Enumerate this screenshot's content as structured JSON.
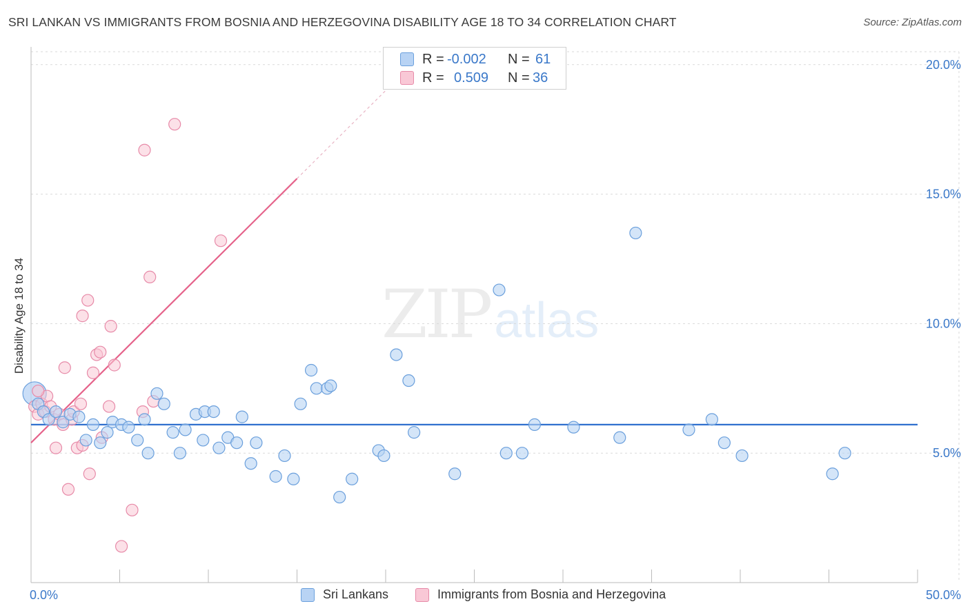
{
  "header": {
    "title": "SRI LANKAN VS IMMIGRANTS FROM BOSNIA AND HERZEGOVINA DISABILITY AGE 18 TO 34 CORRELATION CHART",
    "source": "Source: ZipAtlas.com"
  },
  "watermark": {
    "zip": "ZIP",
    "atlas": "atlas"
  },
  "stats_legend": {
    "r_label": "R =",
    "n_label": "N =",
    "rows": [
      {
        "series": "Sri Lankans",
        "r": "-0.002",
        "n": "61"
      },
      {
        "series": "Immigrants from Bosnia and Herzegovina",
        "r": "0.509",
        "n": "36"
      }
    ]
  },
  "colors": {
    "blue_fill": "#b8d3f4",
    "blue_stroke": "#6a9fdc",
    "blue_line": "#2e6fce",
    "pink_fill": "#f9c8d6",
    "pink_stroke": "#e78aa8",
    "pink_line": "#e5628a",
    "tick_label": "#3a78c9",
    "grid": "#d9d9d9"
  },
  "chart_data": {
    "type": "scatter",
    "title": "SRI LANKAN VS IMMIGRANTS FROM BOSNIA AND HERZEGOVINA DISABILITY AGE 18 TO 34 CORRELATION CHART",
    "xlabel": "",
    "ylabel": "Disability Age 18 to 34",
    "xlim": [
      0,
      50
    ],
    "ylim": [
      0,
      20.5
    ],
    "x_tick_labels": [
      "0.0%",
      "50.0%"
    ],
    "y_ticks": [
      5,
      10,
      15,
      20
    ],
    "y_tick_labels": [
      "5.0%",
      "10.0%",
      "15.0%",
      "20.0%"
    ],
    "legend_position": "bottom-center",
    "series": [
      {
        "name": "Sri Lankans",
        "color": "#6a9fdc",
        "trend": {
          "x0": 0,
          "y0": 6.1,
          "x1": 50,
          "y1": 6.1
        },
        "points": [
          {
            "x": 0.4,
            "y": 6.9
          },
          {
            "x": 0.7,
            "y": 6.6
          },
          {
            "x": 1.0,
            "y": 6.3
          },
          {
            "x": 1.4,
            "y": 6.6
          },
          {
            "x": 1.8,
            "y": 6.2
          },
          {
            "x": 2.2,
            "y": 6.5
          },
          {
            "x": 2.7,
            "y": 6.4
          },
          {
            "x": 3.1,
            "y": 5.5
          },
          {
            "x": 3.5,
            "y": 6.1
          },
          {
            "x": 3.9,
            "y": 5.4
          },
          {
            "x": 4.3,
            "y": 5.8
          },
          {
            "x": 4.6,
            "y": 6.2
          },
          {
            "x": 5.1,
            "y": 6.1
          },
          {
            "x": 5.5,
            "y": 6.0
          },
          {
            "x": 6.0,
            "y": 5.5
          },
          {
            "x": 6.4,
            "y": 6.3
          },
          {
            "x": 6.6,
            "y": 5.0
          },
          {
            "x": 7.1,
            "y": 7.3
          },
          {
            "x": 7.5,
            "y": 6.9
          },
          {
            "x": 8.0,
            "y": 5.8
          },
          {
            "x": 8.4,
            "y": 5.0
          },
          {
            "x": 8.7,
            "y": 5.9
          },
          {
            "x": 9.3,
            "y": 6.5
          },
          {
            "x": 9.7,
            "y": 5.5
          },
          {
            "x": 9.8,
            "y": 6.6
          },
          {
            "x": 10.3,
            "y": 6.6
          },
          {
            "x": 10.6,
            "y": 5.2
          },
          {
            "x": 11.1,
            "y": 5.6
          },
          {
            "x": 11.6,
            "y": 5.4
          },
          {
            "x": 11.9,
            "y": 6.4
          },
          {
            "x": 12.4,
            "y": 4.6
          },
          {
            "x": 12.7,
            "y": 5.4
          },
          {
            "x": 13.8,
            "y": 4.1
          },
          {
            "x": 14.3,
            "y": 4.9
          },
          {
            "x": 14.8,
            "y": 4.0
          },
          {
            "x": 15.2,
            "y": 6.9
          },
          {
            "x": 15.8,
            "y": 8.2
          },
          {
            "x": 16.1,
            "y": 7.5
          },
          {
            "x": 16.7,
            "y": 7.5
          },
          {
            "x": 16.9,
            "y": 7.6
          },
          {
            "x": 17.4,
            "y": 3.3
          },
          {
            "x": 18.1,
            "y": 4.0
          },
          {
            "x": 19.6,
            "y": 5.1
          },
          {
            "x": 19.9,
            "y": 4.9
          },
          {
            "x": 20.6,
            "y": 8.8
          },
          {
            "x": 21.3,
            "y": 7.8
          },
          {
            "x": 21.6,
            "y": 5.8
          },
          {
            "x": 23.9,
            "y": 4.2
          },
          {
            "x": 26.4,
            "y": 11.3
          },
          {
            "x": 26.8,
            "y": 5.0
          },
          {
            "x": 27.7,
            "y": 5.0
          },
          {
            "x": 28.4,
            "y": 6.1
          },
          {
            "x": 30.6,
            "y": 6.0
          },
          {
            "x": 33.2,
            "y": 5.6
          },
          {
            "x": 34.1,
            "y": 13.5
          },
          {
            "x": 37.1,
            "y": 5.9
          },
          {
            "x": 38.4,
            "y": 6.3
          },
          {
            "x": 39.1,
            "y": 5.4
          },
          {
            "x": 40.1,
            "y": 4.9
          },
          {
            "x": 45.2,
            "y": 4.2
          },
          {
            "x": 45.9,
            "y": 5.0
          }
        ]
      },
      {
        "name": "Immigrants from Bosnia and Herzegovina",
        "color": "#e78aa8",
        "trend": {
          "x0": 0,
          "y0": 5.4,
          "x1": 15,
          "y1": 15.6
        },
        "trend_dashed_to": {
          "x": 20,
          "y": 19.0
        },
        "points": [
          {
            "x": 0.2,
            "y": 6.8
          },
          {
            "x": 0.4,
            "y": 6.5
          },
          {
            "x": 0.6,
            "y": 6.9
          },
          {
            "x": 0.8,
            "y": 6.6
          },
          {
            "x": 0.9,
            "y": 7.2
          },
          {
            "x": 1.1,
            "y": 6.8
          },
          {
            "x": 1.3,
            "y": 6.3
          },
          {
            "x": 1.4,
            "y": 5.2
          },
          {
            "x": 1.6,
            "y": 6.5
          },
          {
            "x": 1.8,
            "y": 6.1
          },
          {
            "x": 1.9,
            "y": 8.3
          },
          {
            "x": 2.1,
            "y": 3.6
          },
          {
            "x": 2.3,
            "y": 6.3
          },
          {
            "x": 2.4,
            "y": 6.6
          },
          {
            "x": 2.6,
            "y": 5.2
          },
          {
            "x": 2.9,
            "y": 5.3
          },
          {
            "x": 2.8,
            "y": 6.9
          },
          {
            "x": 2.9,
            "y": 10.3
          },
          {
            "x": 3.2,
            "y": 10.9
          },
          {
            "x": 3.3,
            "y": 4.2
          },
          {
            "x": 3.5,
            "y": 8.1
          },
          {
            "x": 3.7,
            "y": 8.8
          },
          {
            "x": 3.9,
            "y": 8.9
          },
          {
            "x": 4.0,
            "y": 5.6
          },
          {
            "x": 4.4,
            "y": 6.8
          },
          {
            "x": 4.5,
            "y": 9.9
          },
          {
            "x": 4.7,
            "y": 8.4
          },
          {
            "x": 5.1,
            "y": 1.4
          },
          {
            "x": 5.7,
            "y": 2.8
          },
          {
            "x": 6.3,
            "y": 6.6
          },
          {
            "x": 6.4,
            "y": 16.7
          },
          {
            "x": 6.7,
            "y": 11.8
          },
          {
            "x": 6.9,
            "y": 7.0
          },
          {
            "x": 8.1,
            "y": 17.7
          },
          {
            "x": 10.7,
            "y": 13.2
          },
          {
            "x": 0.4,
            "y": 7.4
          }
        ]
      }
    ]
  },
  "bottom_legend": {
    "items": [
      {
        "label": "Sri Lankans"
      },
      {
        "label": "Immigrants from Bosnia and Herzegovina"
      }
    ]
  }
}
